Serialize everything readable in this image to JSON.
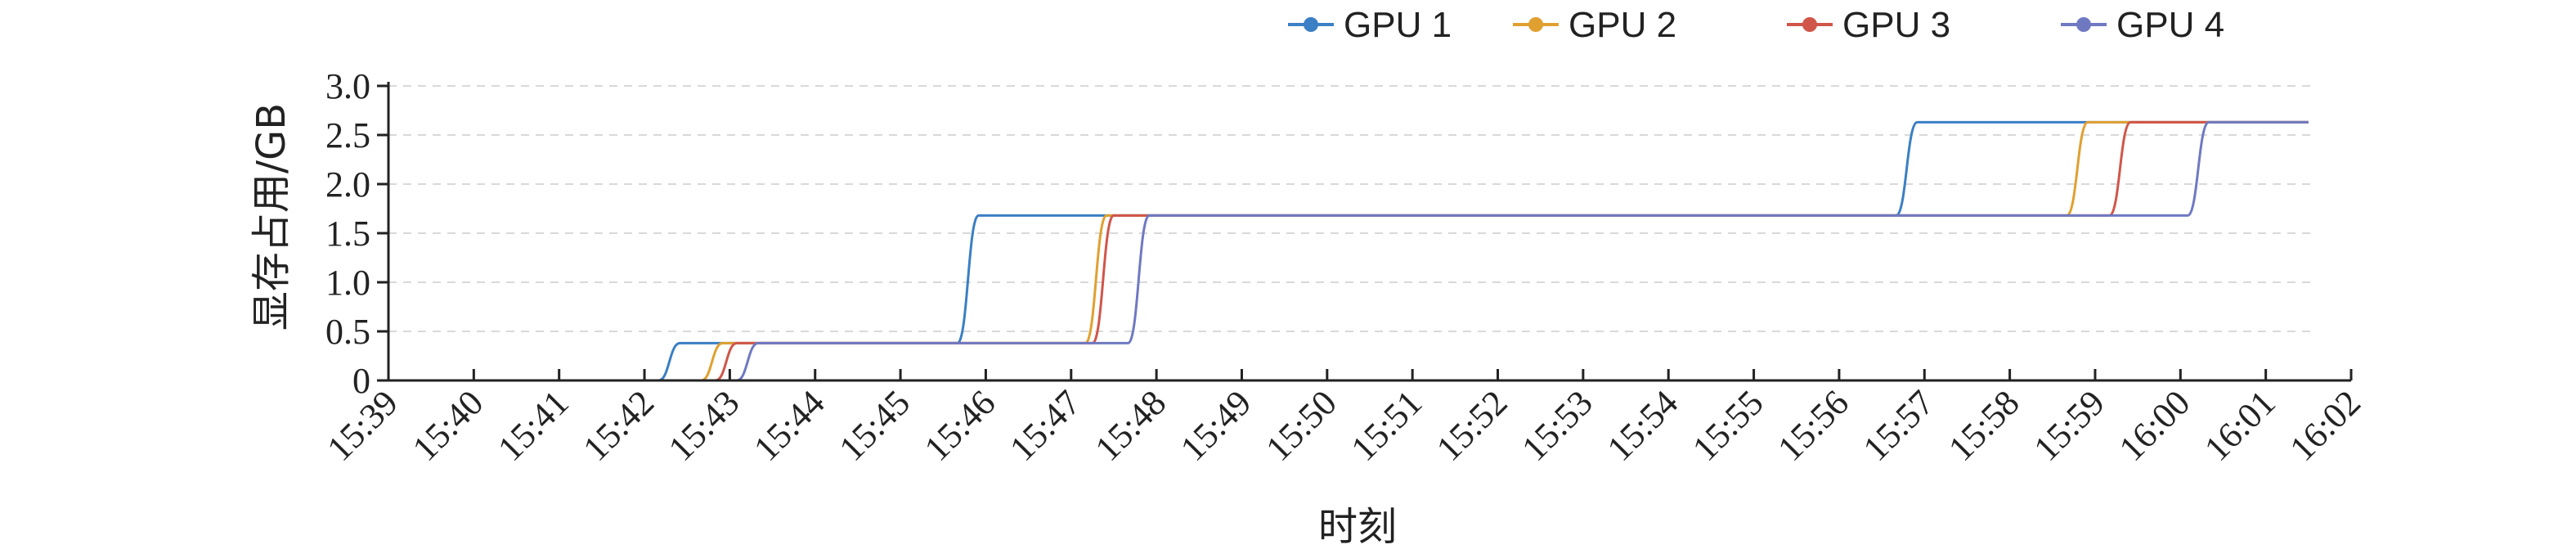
{
  "chart_data": {
    "type": "line",
    "xlabel": "时刻",
    "ylabel": "显存占用/GB",
    "x_ticks": [
      "15:39",
      "15:40",
      "15:41",
      "15:42",
      "15:43",
      "15:44",
      "15:45",
      "15:46",
      "15:47",
      "15:48",
      "15:49",
      "15:50",
      "15:51",
      "15:52",
      "15:53",
      "15:54",
      "15:55",
      "15:56",
      "15:57",
      "15:58",
      "15:59",
      "16:00",
      "16:01",
      "16:02"
    ],
    "y_ticks": [
      "0",
      "0.5",
      "1.0",
      "1.5",
      "2.0",
      "2.5",
      "3.0"
    ],
    "xlim": [
      "15:39",
      "16:02"
    ],
    "ylim": [
      0,
      3.0
    ],
    "grid": "horizontal dashed",
    "legend_position": "top",
    "series": [
      {
        "name": "GPU 1",
        "color": "#3b7fc4",
        "points": [
          [
            "15:42:10",
            0
          ],
          [
            "15:42:25",
            0.38
          ],
          [
            "15:45:40",
            0.38
          ],
          [
            "15:45:55",
            1.68
          ],
          [
            "15:56:40",
            1.68
          ],
          [
            "15:56:55",
            2.63
          ],
          [
            "16:01:30",
            2.63
          ]
        ]
      },
      {
        "name": "GPU 2",
        "color": "#e0a030",
        "points": [
          [
            "15:42:40",
            0
          ],
          [
            "15:42:55",
            0.38
          ],
          [
            "15:47:10",
            0.38
          ],
          [
            "15:47:25",
            1.68
          ],
          [
            "15:58:40",
            1.68
          ],
          [
            "15:58:55",
            2.63
          ],
          [
            "16:01:30",
            2.63
          ]
        ]
      },
      {
        "name": "GPU 3",
        "color": "#d0564a",
        "points": [
          [
            "15:42:50",
            0
          ],
          [
            "15:43:05",
            0.38
          ],
          [
            "15:47:15",
            0.38
          ],
          [
            "15:47:30",
            1.68
          ],
          [
            "15:59:10",
            1.68
          ],
          [
            "15:59:25",
            2.63
          ],
          [
            "16:01:30",
            2.63
          ]
        ]
      },
      {
        "name": "GPU 4",
        "color": "#6f79c2",
        "points": [
          [
            "15:43:05",
            0
          ],
          [
            "15:43:20",
            0.38
          ],
          [
            "15:47:40",
            0.38
          ],
          [
            "15:47:55",
            1.68
          ],
          [
            "16:00:05",
            1.68
          ],
          [
            "16:00:20",
            2.63
          ],
          [
            "16:01:30",
            2.63
          ]
        ]
      }
    ]
  }
}
